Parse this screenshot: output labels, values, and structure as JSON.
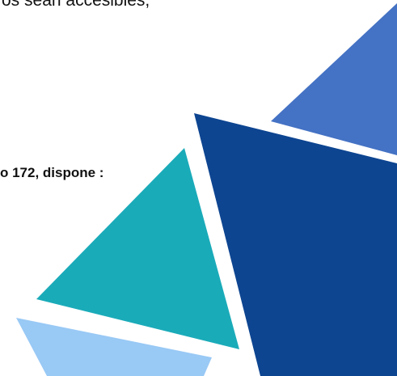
{
  "document": {
    "lines": [
      "os sean accesibles,",
      "o 172, dispone :"
    ]
  }
}
